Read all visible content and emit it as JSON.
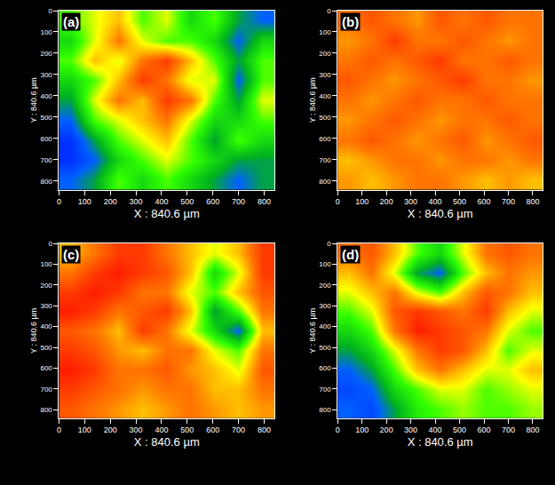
{
  "chart_data": [
    {
      "type": "heatmap",
      "title": "(a)",
      "xlabel": "X : 840.6 µm",
      "ylabel": "Y : 840.6 µm",
      "x": [
        46.7,
        140.1,
        233.5,
        326.9,
        420.3,
        513.7,
        607.1,
        700.5,
        793.9
      ],
      "y": [
        46.7,
        140.1,
        233.5,
        326.9,
        420.3,
        513.7,
        607.1,
        700.5,
        793.9
      ],
      "z": [
        [
          0.5,
          0.6,
          0.7,
          0.5,
          0.6,
          0.4,
          0.5,
          0.3,
          0.2
        ],
        [
          0.4,
          0.6,
          0.8,
          0.6,
          0.5,
          0.5,
          0.4,
          0.2,
          0.4
        ],
        [
          0.5,
          0.7,
          0.6,
          0.8,
          0.9,
          0.7,
          0.5,
          0.3,
          0.5
        ],
        [
          0.4,
          0.5,
          0.7,
          0.9,
          0.8,
          0.6,
          0.6,
          0.2,
          0.5
        ],
        [
          0.3,
          0.6,
          0.8,
          0.7,
          0.9,
          0.8,
          0.5,
          0.3,
          0.6
        ],
        [
          0.2,
          0.5,
          0.6,
          0.7,
          0.8,
          0.6,
          0.4,
          0.4,
          0.5
        ],
        [
          0.1,
          0.3,
          0.5,
          0.6,
          0.7,
          0.5,
          0.3,
          0.5,
          0.4
        ],
        [
          0.1,
          0.2,
          0.4,
          0.5,
          0.6,
          0.5,
          0.4,
          0.3,
          0.3
        ],
        [
          0.2,
          0.3,
          0.5,
          0.4,
          0.5,
          0.4,
          0.3,
          0.2,
          0.3
        ]
      ],
      "zlim": [
        0,
        1
      ],
      "xlim": [
        0,
        840.6
      ],
      "ylim": [
        840.6,
        0
      ],
      "xticks": [
        0,
        100,
        200,
        300,
        400,
        500,
        600,
        700,
        800
      ],
      "yticks": [
        0,
        100,
        200,
        300,
        400,
        500,
        600,
        700,
        800
      ]
    },
    {
      "type": "heatmap",
      "title": "(b)",
      "xlabel": "X : 840.6 µm",
      "ylabel": "Y : 840.6 µm",
      "x": [
        46.7,
        140.1,
        233.5,
        326.9,
        420.3,
        513.7,
        607.1,
        700.5,
        793.9
      ],
      "y": [
        46.7,
        140.1,
        233.5,
        326.9,
        420.3,
        513.7,
        607.1,
        700.5,
        793.9
      ],
      "z": [
        [
          0.8,
          0.85,
          0.8,
          0.75,
          0.85,
          0.8,
          0.85,
          0.8,
          0.8
        ],
        [
          0.75,
          0.8,
          0.9,
          0.8,
          0.8,
          0.85,
          0.8,
          0.75,
          0.8
        ],
        [
          0.8,
          0.85,
          0.8,
          0.85,
          0.9,
          0.8,
          0.8,
          0.85,
          0.8
        ],
        [
          0.85,
          0.8,
          0.75,
          0.8,
          0.85,
          0.9,
          0.8,
          0.8,
          0.75
        ],
        [
          0.8,
          0.75,
          0.8,
          0.85,
          0.8,
          0.8,
          0.85,
          0.8,
          0.8
        ],
        [
          0.75,
          0.8,
          0.85,
          0.8,
          0.75,
          0.8,
          0.8,
          0.85,
          0.8
        ],
        [
          0.8,
          0.85,
          0.8,
          0.75,
          0.8,
          0.85,
          0.75,
          0.8,
          0.85
        ],
        [
          0.7,
          0.75,
          0.8,
          0.8,
          0.75,
          0.8,
          0.8,
          0.75,
          0.8
        ],
        [
          0.75,
          0.7,
          0.75,
          0.8,
          0.8,
          0.75,
          0.7,
          0.75,
          0.7
        ]
      ],
      "zlim": [
        0,
        1
      ],
      "xlim": [
        0,
        840.6
      ],
      "ylim": [
        840.6,
        0
      ],
      "xticks": [
        0,
        100,
        200,
        300,
        400,
        500,
        600,
        700,
        800
      ],
      "yticks": [
        0,
        100,
        200,
        300,
        400,
        500,
        600,
        700,
        800
      ]
    },
    {
      "type": "heatmap",
      "title": "(c)",
      "xlabel": "X : 840.6 µm",
      "ylabel": "Y : 840.6 µm",
      "x": [
        46.7,
        140.1,
        233.5,
        326.9,
        420.3,
        513.7,
        607.1,
        700.5,
        793.9
      ],
      "y": [
        46.7,
        140.1,
        233.5,
        326.9,
        420.3,
        513.7,
        607.1,
        700.5,
        793.9
      ],
      "z": [
        [
          0.7,
          0.8,
          0.9,
          0.9,
          0.8,
          0.7,
          0.6,
          0.7,
          0.9
        ],
        [
          0.8,
          0.9,
          0.95,
          0.9,
          0.85,
          0.7,
          0.4,
          0.6,
          0.9
        ],
        [
          0.9,
          0.95,
          0.9,
          0.8,
          0.8,
          0.6,
          0.5,
          0.7,
          0.85
        ],
        [
          0.95,
          0.9,
          0.8,
          0.85,
          0.9,
          0.7,
          0.3,
          0.5,
          0.8
        ],
        [
          0.85,
          0.8,
          0.7,
          0.9,
          0.8,
          0.6,
          0.4,
          0.2,
          0.7
        ],
        [
          0.9,
          0.85,
          0.75,
          0.7,
          0.8,
          0.8,
          0.6,
          0.5,
          0.8
        ],
        [
          0.95,
          0.9,
          0.8,
          0.8,
          0.85,
          0.75,
          0.7,
          0.6,
          0.85
        ],
        [
          0.9,
          0.85,
          0.8,
          0.75,
          0.8,
          0.8,
          0.7,
          0.7,
          0.8
        ],
        [
          0.85,
          0.8,
          0.75,
          0.7,
          0.75,
          0.8,
          0.75,
          0.7,
          0.75
        ]
      ],
      "zlim": [
        0,
        1
      ],
      "xlim": [
        0,
        840.6
      ],
      "ylim": [
        840.6,
        0
      ],
      "xticks": [
        0,
        100,
        200,
        300,
        400,
        500,
        600,
        700,
        800
      ],
      "yticks": [
        0,
        100,
        200,
        300,
        400,
        500,
        600,
        700,
        800
      ]
    },
    {
      "type": "heatmap",
      "title": "(d)",
      "xlabel": "X : 840.6 µm",
      "ylabel": "Y : 840.6 µm",
      "x": [
        46.7,
        140.1,
        233.5,
        326.9,
        420.3,
        513.7,
        607.1,
        700.5,
        793.9
      ],
      "y": [
        46.7,
        140.1,
        233.5,
        326.9,
        420.3,
        513.7,
        607.1,
        700.5,
        793.9
      ],
      "z": [
        [
          0.8,
          0.85,
          0.7,
          0.5,
          0.4,
          0.6,
          0.8,
          0.85,
          0.8
        ],
        [
          0.7,
          0.8,
          0.6,
          0.3,
          0.2,
          0.5,
          0.7,
          0.8,
          0.75
        ],
        [
          0.6,
          0.7,
          0.8,
          0.6,
          0.5,
          0.7,
          0.85,
          0.8,
          0.7
        ],
        [
          0.5,
          0.6,
          0.85,
          0.9,
          0.85,
          0.8,
          0.9,
          0.7,
          0.6
        ],
        [
          0.4,
          0.5,
          0.8,
          0.95,
          0.9,
          0.85,
          0.8,
          0.6,
          0.5
        ],
        [
          0.3,
          0.4,
          0.6,
          0.8,
          0.9,
          0.85,
          0.7,
          0.5,
          0.6
        ],
        [
          0.2,
          0.3,
          0.5,
          0.7,
          0.8,
          0.7,
          0.6,
          0.6,
          0.7
        ],
        [
          0.15,
          0.2,
          0.4,
          0.5,
          0.6,
          0.6,
          0.5,
          0.55,
          0.6
        ],
        [
          0.2,
          0.15,
          0.3,
          0.45,
          0.5,
          0.55,
          0.5,
          0.5,
          0.55
        ]
      ],
      "zlim": [
        0,
        1
      ],
      "xlim": [
        0,
        840.6
      ],
      "ylim": [
        840.6,
        0
      ],
      "xticks": [
        0,
        100,
        200,
        300,
        400,
        500,
        600,
        700,
        800
      ],
      "yticks": [
        0,
        100,
        200,
        300,
        400,
        500,
        600,
        700,
        800
      ]
    }
  ]
}
